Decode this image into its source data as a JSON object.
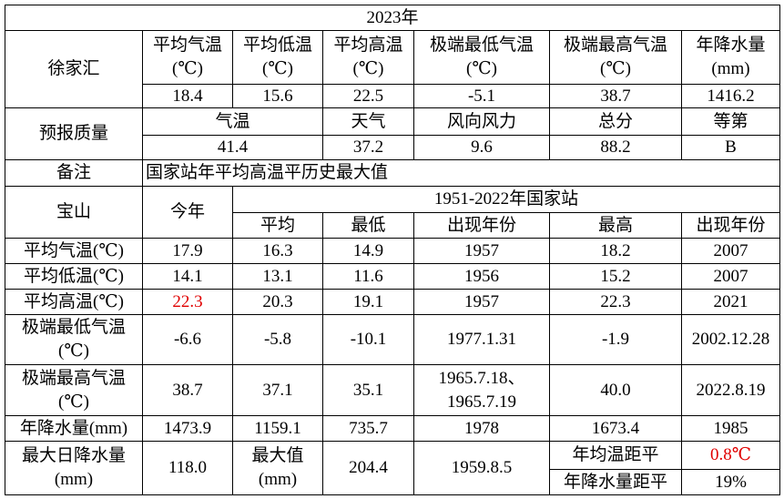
{
  "title": "2023年",
  "xujiahui": {
    "station": "徐家汇",
    "headers": [
      [
        "平均气温",
        "(℃)"
      ],
      [
        "平均低温",
        "(℃)"
      ],
      [
        "平均高温",
        "(℃)"
      ],
      [
        "极端最低气温",
        "(℃)"
      ],
      [
        "极端最高气温",
        "(℃)"
      ],
      [
        "年降水量",
        "(mm)"
      ]
    ],
    "values": [
      "18.4",
      "15.6",
      "22.5",
      "-5.1",
      "38.7",
      "1416.2"
    ]
  },
  "forecast": {
    "label": "预报质量",
    "headers": [
      "气温",
      "天气",
      "风向风力",
      "总分",
      "等第"
    ],
    "values": [
      "41.4",
      "37.2",
      "9.6",
      "88.2",
      "B"
    ]
  },
  "note": {
    "label": "备注",
    "text": "国家站年平均高温平历史最大值"
  },
  "baoshan": {
    "station": "宝山",
    "this_year": "今年",
    "period": "1951-2022年国家站",
    "headers": [
      "平均",
      "最低",
      "出现年份",
      "最高",
      "出现年份"
    ],
    "rows": [
      {
        "label": "平均气温(℃)",
        "cells": [
          "17.9",
          "16.3",
          "14.9",
          "1957",
          "18.2",
          "2007"
        ]
      },
      {
        "label": "平均低温(℃)",
        "cells": [
          "14.1",
          "13.1",
          "11.6",
          "1956",
          "15.2",
          "2007"
        ]
      },
      {
        "label": "平均高温(℃)",
        "cells": [
          "22.3",
          "20.3",
          "19.1",
          "1957",
          "22.3",
          "2021"
        ]
      },
      {
        "label": [
          "极端最低气温",
          "(℃)"
        ],
        "cells": [
          "-6.6",
          "-5.8",
          "-10.1",
          "1977.1.31",
          "-1.9",
          "2002.12.28"
        ]
      },
      {
        "label": [
          "极端最高气温",
          "(℃)"
        ],
        "cells": [
          "38.7",
          "37.1",
          "35.1",
          [
            "1965.7.18、",
            "1965.7.19"
          ],
          "40.0",
          "2022.8.19"
        ]
      },
      {
        "label": "年降水量(mm)",
        "cells": [
          "1473.9",
          "1159.1",
          "735.7",
          "1978",
          "1673.4",
          "1985"
        ]
      }
    ]
  },
  "summary": {
    "label": [
      "最大日降水量",
      "(mm)"
    ],
    "value": "118.0",
    "max_label": [
      "最大值",
      "(mm)"
    ],
    "max_value": "204.4",
    "max_date": "1959.8.5",
    "anomalies": [
      {
        "label": "年均温距平",
        "value": "0.8℃"
      },
      {
        "label": "年降水量距平",
        "value": "19%"
      }
    ]
  }
}
